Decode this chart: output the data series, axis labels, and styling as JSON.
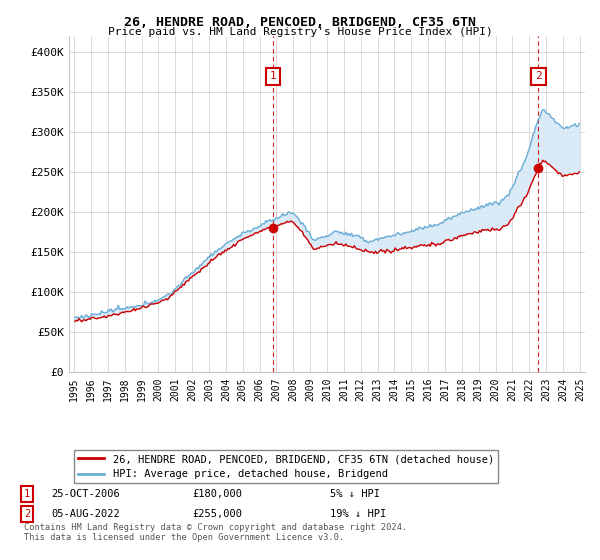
{
  "title": "26, HENDRE ROAD, PENCOED, BRIDGEND, CF35 6TN",
  "subtitle": "Price paid vs. HM Land Registry's House Price Index (HPI)",
  "ylim": [
    0,
    420000
  ],
  "yticks": [
    0,
    50000,
    100000,
    150000,
    200000,
    250000,
    300000,
    350000,
    400000
  ],
  "ytick_labels": [
    "£0",
    "£50K",
    "£100K",
    "£150K",
    "£200K",
    "£250K",
    "£300K",
    "£350K",
    "£400K"
  ],
  "hpi_color": "#6baed6",
  "hpi_fill_color": "#d6e8f7",
  "price_color": "#cc0000",
  "transaction1_t": 2006.79,
  "transaction1_price": 180000,
  "transaction2_t": 2022.54,
  "transaction2_price": 255000,
  "vline_color": "#cc0000",
  "marker_box_color": "#cc0000",
  "legend_line1": "26, HENDRE ROAD, PENCOED, BRIDGEND, CF35 6TN (detached house)",
  "legend_line2": "HPI: Average price, detached house, Bridgend",
  "t1_label": "1",
  "t2_label": "2",
  "t1_date": "25-OCT-2006",
  "t1_price_str": "£180,000",
  "t1_pct": "5% ↓ HPI",
  "t2_date": "05-AUG-2022",
  "t2_price_str": "£255,000",
  "t2_pct": "19% ↓ HPI",
  "footnote": "Contains HM Land Registry data © Crown copyright and database right 2024.\nThis data is licensed under the Open Government Licence v3.0.",
  "background_color": "#ffffff",
  "grid_color": "#cccccc"
}
